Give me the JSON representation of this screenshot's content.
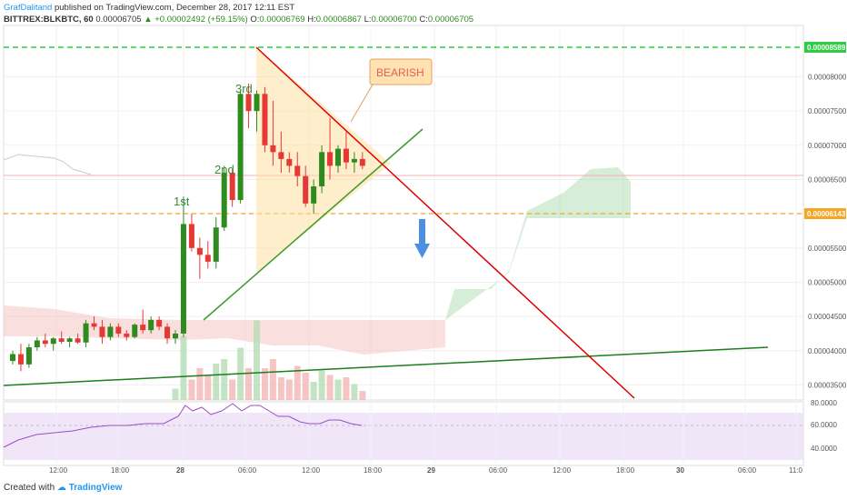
{
  "header": {
    "author": "GrafDalitand",
    "published": "published on TradingView.com, December 28, 2017 12:11 EST",
    "symbol": "BITTREX:BLKBTC, 60",
    "last": "0.00006705",
    "change": "+0.00002492 (+59.15%)",
    "o": "0.00006769",
    "h": "0.00006867",
    "l": "0.00006700",
    "c": "0.00006705"
  },
  "footer": {
    "created": "Created with",
    "brand": "TradingView"
  },
  "colors": {
    "up": "#2e8b1e",
    "down": "#e53935",
    "green_line": "#1e7d1e",
    "red_line": "#e00000",
    "orange": "#f5a623",
    "dash_green": "#2ecc40"
  },
  "chart_data": {
    "type": "candlestick",
    "x_ticks": [
      "12:00",
      "18:00",
      "28",
      "06:00",
      "12:00",
      "18:00",
      "29",
      "06:00",
      "12:00",
      "18:00",
      "30",
      "06:00",
      "11:0"
    ],
    "y_ticks": [
      "0.00008000",
      "0.00007500",
      "0.00007000",
      "0.00006500",
      "0.00006000",
      "0.00005500",
      "0.00005000",
      "0.00004500",
      "0.00004000",
      "0.00003500"
    ],
    "ylim": [
      3.28e-05,
      8.75e-05
    ],
    "price_labels": {
      "top": "0.00008589",
      "mid": "0.00006143"
    },
    "annotations": {
      "bearish": "BEARISH",
      "first": "1st",
      "second": "2nd",
      "third": "3rd"
    },
    "candles": [
      {
        "o": 3.85e-05,
        "h": 4e-05,
        "l": 3.8e-05,
        "c": 3.95e-05
      },
      {
        "o": 3.95e-05,
        "h": 4.1e-05,
        "l": 3.7e-05,
        "c": 3.8e-05
      },
      {
        "o": 3.8e-05,
        "h": 4.1e-05,
        "l": 3.75e-05,
        "c": 4.05e-05
      },
      {
        "o": 4.05e-05,
        "h": 4.2e-05,
        "l": 4e-05,
        "c": 4.15e-05
      },
      {
        "o": 4.15e-05,
        "h": 4.25e-05,
        "l": 4.05e-05,
        "c": 4.1e-05
      },
      {
        "o": 4.1e-05,
        "h": 4.2e-05,
        "l": 4e-05,
        "c": 4.18e-05
      },
      {
        "o": 4.18e-05,
        "h": 4.28e-05,
        "l": 4.1e-05,
        "c": 4.13e-05
      },
      {
        "o": 4.13e-05,
        "h": 4.2e-05,
        "l": 4.05e-05,
        "c": 4.18e-05
      },
      {
        "o": 4.18e-05,
        "h": 4.25e-05,
        "l": 4.1e-05,
        "c": 4.12e-05
      },
      {
        "o": 4.12e-05,
        "h": 4.45e-05,
        "l": 4.05e-05,
        "c": 4.4e-05
      },
      {
        "o": 4.4e-05,
        "h": 4.5e-05,
        "l": 4.3e-05,
        "c": 4.35e-05
      },
      {
        "o": 4.35e-05,
        "h": 4.45e-05,
        "l": 4.1e-05,
        "c": 4.2e-05
      },
      {
        "o": 4.2e-05,
        "h": 4.4e-05,
        "l": 4.15e-05,
        "c": 4.35e-05
      },
      {
        "o": 4.35e-05,
        "h": 4.4e-05,
        "l": 4.2e-05,
        "c": 4.25e-05
      },
      {
        "o": 4.25e-05,
        "h": 4.3e-05,
        "l": 4.15e-05,
        "c": 4.2e-05
      },
      {
        "o": 4.2e-05,
        "h": 4.4e-05,
        "l": 4.18e-05,
        "c": 4.38e-05
      },
      {
        "o": 4.38e-05,
        "h": 4.6e-05,
        "l": 4.25e-05,
        "c": 4.3e-05
      },
      {
        "o": 4.3e-05,
        "h": 4.5e-05,
        "l": 4.25e-05,
        "c": 4.45e-05
      },
      {
        "o": 4.45e-05,
        "h": 4.5e-05,
        "l": 4.3e-05,
        "c": 4.35e-05
      },
      {
        "o": 4.35e-05,
        "h": 4.4e-05,
        "l": 4.1e-05,
        "c": 4.18e-05
      },
      {
        "o": 4.18e-05,
        "h": 4.3e-05,
        "l": 4.1e-05,
        "c": 4.25e-05
      },
      {
        "o": 4.25e-05,
        "h": 6.25e-05,
        "l": 4.2e-05,
        "c": 5.85e-05
      },
      {
        "o": 5.85e-05,
        "h": 6e-05,
        "l": 5.45e-05,
        "c": 5.5e-05
      },
      {
        "o": 5.5e-05,
        "h": 5.65e-05,
        "l": 5.05e-05,
        "c": 5.4e-05
      },
      {
        "o": 5.4e-05,
        "h": 5.6e-05,
        "l": 5.2e-05,
        "c": 5.3e-05
      },
      {
        "o": 5.3e-05,
        "h": 5.95e-05,
        "l": 5.2e-05,
        "c": 5.8e-05
      },
      {
        "o": 5.8e-05,
        "h": 6.7e-05,
        "l": 5.75e-05,
        "c": 6.6e-05
      },
      {
        "o": 6.6e-05,
        "h": 6.65e-05,
        "l": 6.1e-05,
        "c": 6.2e-05
      },
      {
        "o": 6.2e-05,
        "h": 7.8e-05,
        "l": 6.15e-05,
        "c": 7.75e-05
      },
      {
        "o": 7.75e-05,
        "h": 7.9e-05,
        "l": 7.25e-05,
        "c": 7.5e-05
      },
      {
        "o": 7.5e-05,
        "h": 7.8e-05,
        "l": 7.2e-05,
        "c": 7.75e-05
      },
      {
        "o": 7.75e-05,
        "h": 7.85e-05,
        "l": 6.9e-05,
        "c": 7e-05
      },
      {
        "o": 7e-05,
        "h": 7.65e-05,
        "l": 6.7e-05,
        "c": 6.9e-05
      },
      {
        "o": 6.9e-05,
        "h": 7.2e-05,
        "l": 6.6e-05,
        "c": 6.8e-05
      },
      {
        "o": 6.8e-05,
        "h": 6.9e-05,
        "l": 6.6e-05,
        "c": 6.7e-05
      },
      {
        "o": 6.7e-05,
        "h": 6.9e-05,
        "l": 6.4e-05,
        "c": 6.55e-05
      },
      {
        "o": 6.55e-05,
        "h": 6.7e-05,
        "l": 6.1e-05,
        "c": 6.15e-05
      },
      {
        "o": 6.15e-05,
        "h": 6.5e-05,
        "l": 6e-05,
        "c": 6.4e-05
      },
      {
        "o": 6.4e-05,
        "h": 7e-05,
        "l": 6.3e-05,
        "c": 6.9e-05
      },
      {
        "o": 6.9e-05,
        "h": 7.4e-05,
        "l": 6.5e-05,
        "c": 6.7e-05
      },
      {
        "o": 6.7e-05,
        "h": 7e-05,
        "l": 6.6e-05,
        "c": 6.95e-05
      },
      {
        "o": 6.95e-05,
        "h": 7.2e-05,
        "l": 6.65e-05,
        "c": 6.75e-05
      },
      {
        "o": 6.75e-05,
        "h": 6.9e-05,
        "l": 6.6e-05,
        "c": 6.8e-05
      },
      {
        "o": 6.8e-05,
        "h": 6.9e-05,
        "l": 6.65e-05,
        "c": 6.7e-05
      }
    ],
    "volumes": [
      0,
      0,
      0,
      0,
      0,
      0,
      0,
      0,
      0,
      0,
      0,
      0,
      0,
      0,
      0,
      0,
      0,
      0,
      0,
      0,
      0.5,
      2.8,
      0.9,
      1.4,
      1.1,
      1.6,
      1.8,
      0.9,
      2.3,
      1.4,
      3.5,
      1.4,
      1.8,
      1.0,
      0.9,
      1.5,
      1.2,
      0.8,
      1.3,
      1.1,
      0.9,
      1.0,
      0.7,
      0.4
    ],
    "rsi": {
      "levels": [
        80,
        60,
        40
      ],
      "ticks": [
        "80.0000",
        "60.0000",
        "40.0000"
      ]
    }
  }
}
